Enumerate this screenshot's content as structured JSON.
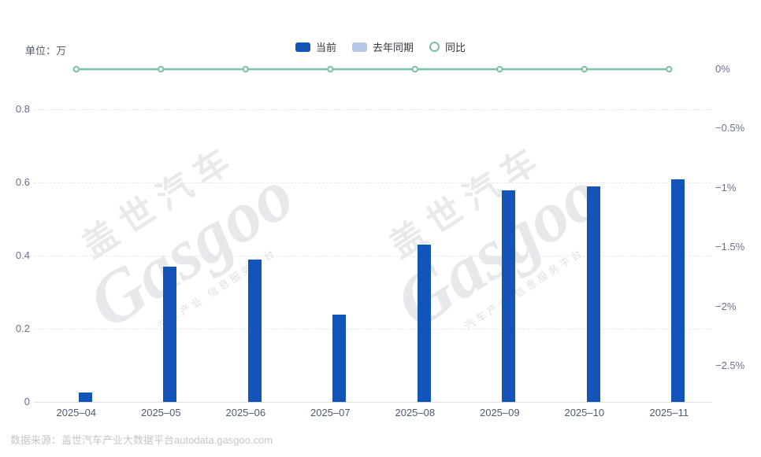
{
  "chart_data": {
    "type": "bar",
    "unit_label": "单位：万",
    "categories": [
      "2025–04",
      "2025–05",
      "2025–06",
      "2025–07",
      "2025–08",
      "2025–09",
      "2025–10",
      "2025–11"
    ],
    "series": [
      {
        "name": "当前",
        "type": "bar",
        "color": "#1254b8",
        "values": [
          0.025,
          0.37,
          0.39,
          0.24,
          0.43,
          0.58,
          0.59,
          0.61
        ]
      },
      {
        "name": "去年同期",
        "type": "bar",
        "color": "#b5c7e8",
        "values": [
          0,
          0,
          0,
          0,
          0,
          0,
          0,
          0
        ]
      },
      {
        "name": "同比",
        "type": "line",
        "color": "#7fc0a4",
        "values_pct": [
          0,
          0,
          0,
          0,
          0,
          0,
          0,
          0
        ]
      }
    ],
    "left_axis": {
      "title": "",
      "min": 0,
      "max": 0.8,
      "tick_step": 0.2,
      "ticks": [
        "0",
        "0.2",
        "0.4",
        "0.6",
        "0.8"
      ]
    },
    "right_axis": {
      "title": "",
      "ticks": [
        "0%",
        "−0.5%",
        "−1%",
        "−1.5%",
        "−2%",
        "−2.5%"
      ],
      "tick_values_pct": [
        0,
        -0.5,
        -1,
        -1.5,
        -2,
        -2.5
      ]
    },
    "grid": "dashed-horizontal",
    "legend_position": "top-center"
  },
  "legend": {
    "items": [
      {
        "label": "当前",
        "icon": "round-rect",
        "color": "#1254b8"
      },
      {
        "label": "去年同期",
        "icon": "round-rect",
        "color": "#b5c7e8"
      },
      {
        "label": "同比",
        "icon": "ring",
        "color": "#7fc0a4"
      }
    ]
  },
  "watermark": {
    "cn": "盖世汽车",
    "logo": "Gasgoo",
    "sub": "汽车产业 信息服务平台"
  },
  "footer": {
    "source": "数据来源：盖世汽车产业大数据平台autodata.gasgoo.com"
  }
}
